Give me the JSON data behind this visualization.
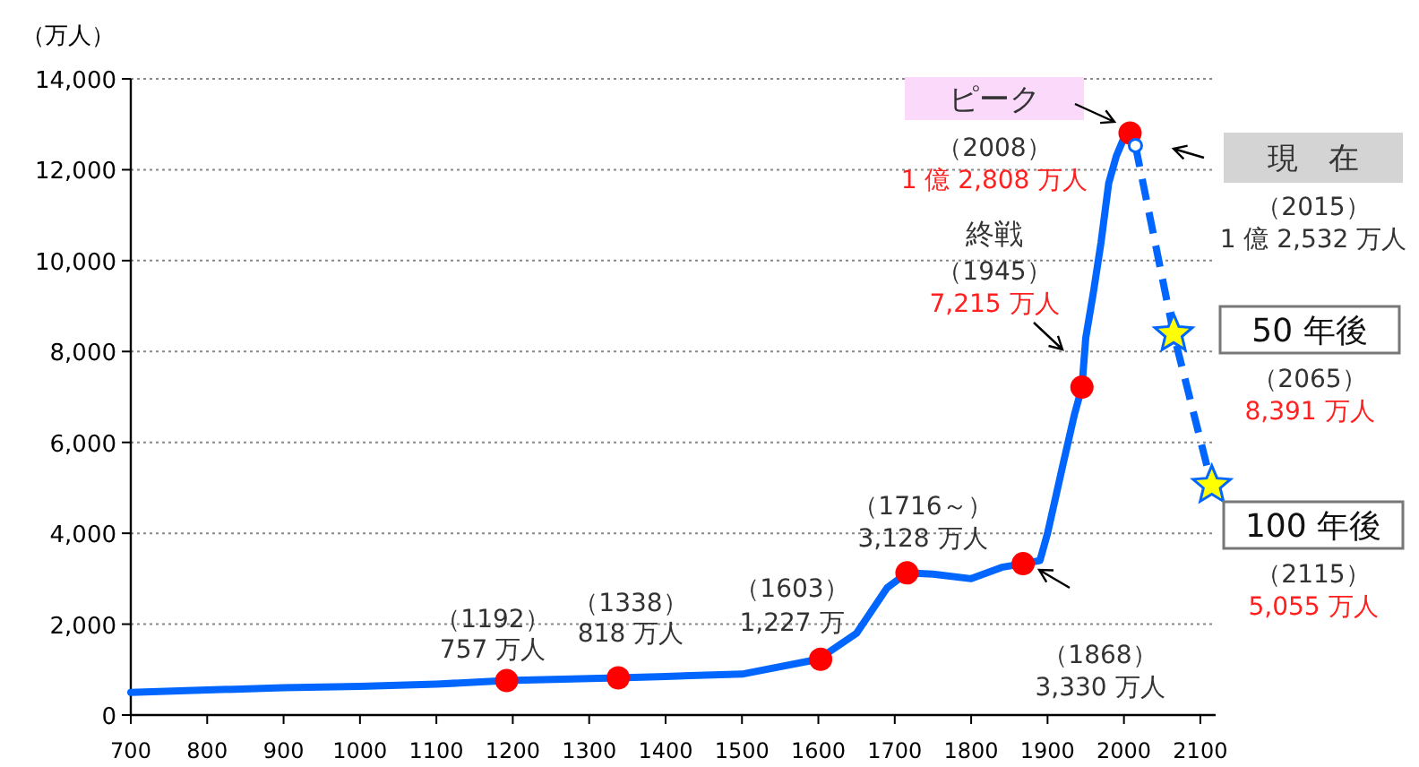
{
  "chart_data": {
    "type": "line",
    "ylabel": "（万人）",
    "xlim": [
      700,
      2120
    ],
    "xticks": [
      700,
      800,
      900,
      1000,
      1100,
      1200,
      1300,
      1400,
      1500,
      1600,
      1700,
      1800,
      1900,
      2000,
      2100
    ],
    "ylim": [
      0,
      14000
    ],
    "yticks": [
      0,
      {
        "value": 2000,
        "label": "2,000"
      },
      {
        "value": 4000,
        "label": "4,000"
      },
      {
        "value": 6000,
        "label": "6,000"
      },
      {
        "value": 8000,
        "label": "8,000"
      },
      {
        "value": 10000,
        "label": "10,000"
      },
      {
        "value": 12000,
        "label": "12,000"
      },
      {
        "value": 14000,
        "label": "14,000"
      }
    ],
    "grid": "y",
    "series": [
      {
        "color": "#0066ff",
        "line_style": "solid",
        "marker": "none",
        "x": [
          700,
          800,
          900,
          1000,
          1100,
          1192,
          1338,
          1400,
          1500,
          1600,
          1650,
          1690,
          1716,
          1750,
          1800,
          1840,
          1868,
          1890,
          1900,
          1920,
          1935,
          1945,
          1950,
          1960,
          1970,
          1980,
          1990,
          2000,
          2008,
          2015
        ],
        "values": [
          500,
          550,
          600,
          630,
          680,
          757,
          818,
          850,
          900,
          1227,
          1800,
          2800,
          3128,
          3100,
          3000,
          3250,
          3330,
          3400,
          4000,
          5500,
          6600,
          7215,
          8300,
          9300,
          10400,
          11700,
          12300,
          12700,
          12808,
          12532
        ]
      },
      {
        "color": "#0066ff",
        "line_style": "dashed",
        "marker": "none",
        "x": [
          2015,
          2065,
          2115
        ],
        "values": [
          12532,
          8391,
          5055
        ]
      },
      {
        "type": "scatter",
        "color": "#ff0000",
        "marker": "circle",
        "x": [
          1192,
          1338,
          1603,
          1716,
          1868,
          1945,
          2008
        ],
        "values": [
          757,
          818,
          1227,
          3128,
          3330,
          7215,
          12808
        ]
      },
      {
        "type": "scatter",
        "color": "#ffffff",
        "marker": "circle",
        "x": [
          2015
        ],
        "values": [
          12532
        ]
      },
      {
        "type": "scatter",
        "color": "#ffff00",
        "marker": "star",
        "x": [
          2065,
          2115
        ],
        "values": [
          8391,
          5055
        ]
      }
    ],
    "annotations": [
      "（1192）",
      "757 万人",
      "（1338）",
      "818 万人",
      "（1603）",
      "1,227 万",
      "（1716～）",
      "3,128 万人",
      "（1868）",
      "3,330 万人",
      "終戦",
      "（1945）",
      "7,215 万人",
      "ピーク",
      "（2008）",
      "1 億 2,808 万人",
      "現　在",
      "（2015）",
      "1 億 2,532 万人",
      "50 年後",
      "（2065）",
      "8,391 万人",
      "100 年後",
      "（2115）",
      "5,055 万人"
    ]
  }
}
